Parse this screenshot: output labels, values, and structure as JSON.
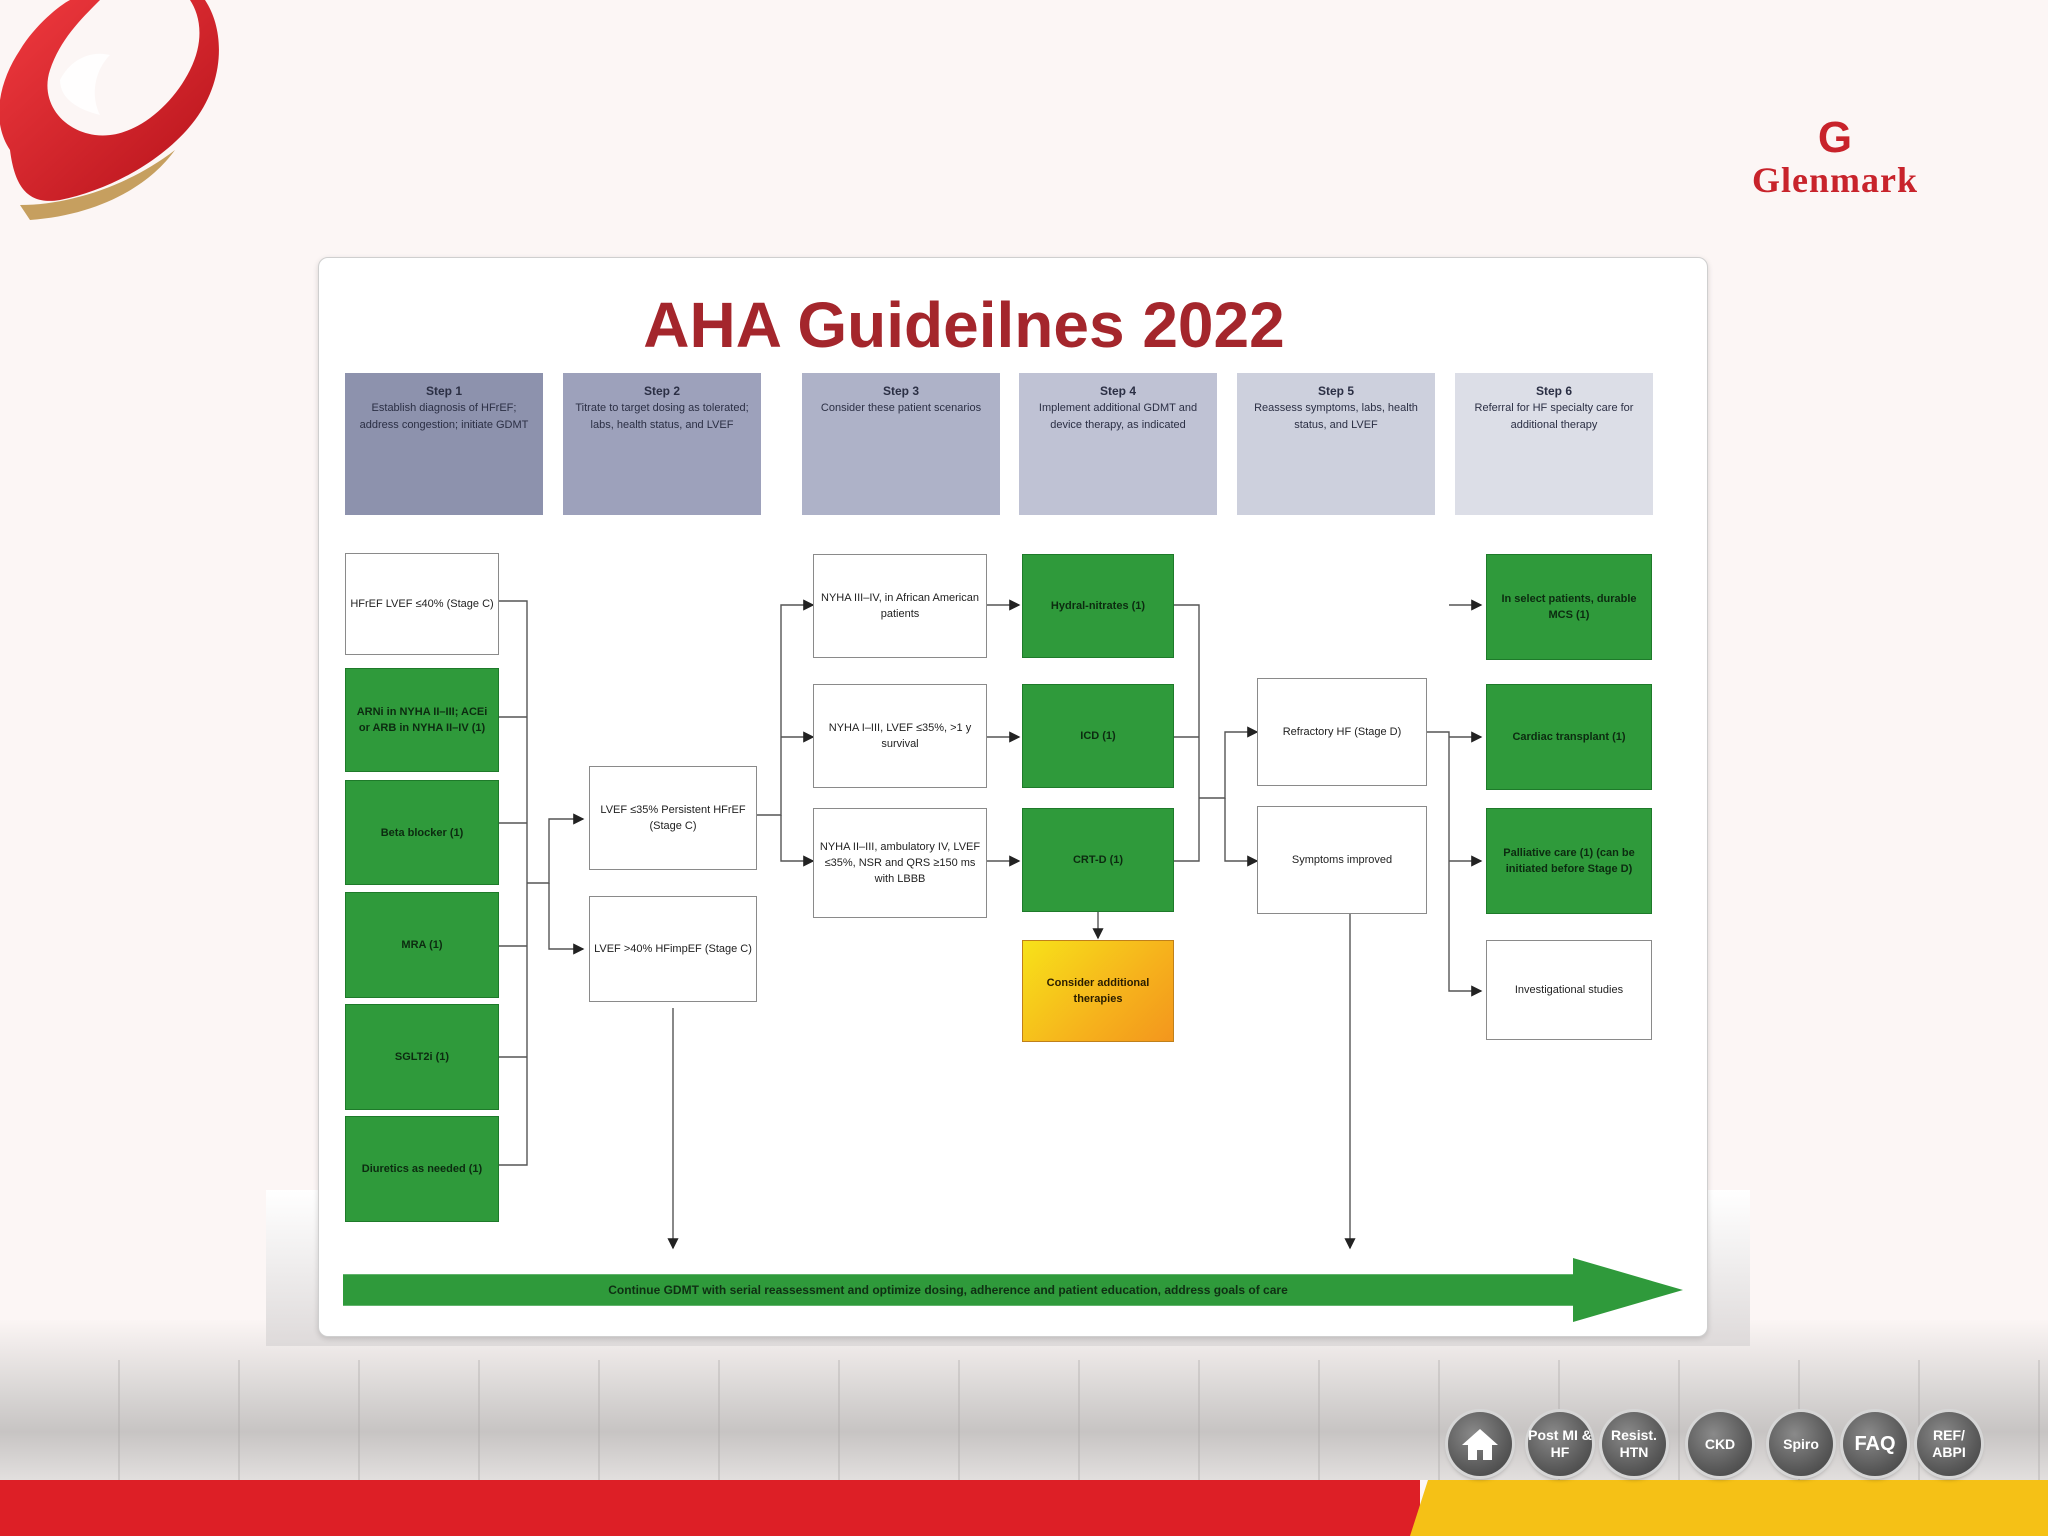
{
  "brand": {
    "mark": "G",
    "name": "Glenmark",
    "accent": "#c8232b"
  },
  "slide": {
    "title": "AHA Guideilnes 2022",
    "steps": [
      {
        "title": "Step 1",
        "text": "Establish diagnosis of HFrEF; address congestion; initiate GDMT"
      },
      {
        "title": "Step 2",
        "text": "Titrate to target dosing as tolerated; labs, health status, and LVEF"
      },
      {
        "title": "Step 3",
        "text": "Consider these patient scenarios"
      },
      {
        "title": "Step 4",
        "text": "Implement additional GDMT and device therapy, as indicated"
      },
      {
        "title": "Step 5",
        "text": "Reassess symptoms, labs, health status, and LVEF"
      },
      {
        "title": "Step 6",
        "text": "Referral for HF specialty care for additional therapy"
      }
    ],
    "col1": [
      "HFrEF LVEF ≤40% (Stage C)",
      "ARNi in NYHA II–III; ACEi or ARB in NYHA II–IV (1)",
      "Beta blocker (1)",
      "MRA (1)",
      "SGLT2i (1)",
      "Diuretics as needed (1)"
    ],
    "col2": [
      "LVEF ≤35% Persistent HFrEF (Stage C)",
      "LVEF >40% HFimpEF (Stage C)"
    ],
    "col3": [
      "NYHA III–IV, in African American patients",
      "NYHA I–III, LVEF ≤35%, >1 y survival",
      "NYHA II–III, ambulatory IV, LVEF ≤35%, NSR and QRS ≥150 ms with LBBB"
    ],
    "col4": [
      "Hydral-nitrates (1)",
      "ICD (1)",
      "CRT-D (1)",
      "Consider additional therapies"
    ],
    "col5": [
      "Refractory HF (Stage D)",
      "Symptoms improved"
    ],
    "col6": [
      "In select patients, durable MCS (1)",
      "Cardiac transplant (1)",
      "Palliative care (1) (can be initiated before Stage D)",
      "Investigational studies"
    ],
    "banner": "Continue GDMT with serial reassessment and optimize dosing, adherence and patient education, address goals of care"
  },
  "nav": [
    {
      "label": "home-icon"
    },
    {
      "label": "Post MI & HF"
    },
    {
      "label": "Resist. HTN"
    },
    {
      "label": "CKD"
    },
    {
      "label": "Spiro"
    },
    {
      "label": "FAQ"
    },
    {
      "label": "REF/ ABPI"
    }
  ]
}
